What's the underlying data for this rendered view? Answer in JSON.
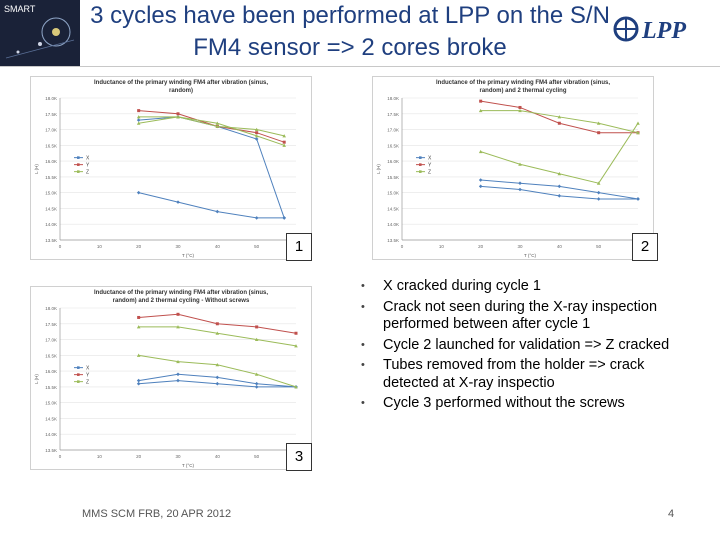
{
  "slide": {
    "title": "3 cycles have been performed at LPP on the S/N FM4 sensor => 2 cores broke",
    "logo_left_text": "SMART",
    "logo_right_text": "LPP",
    "bullets": [
      "X cracked during cycle 1",
      "Crack not seen during the X-ray inspection performed between after cycle 1",
      "Cycle 2 launched for validation => Z cracked",
      "Tubes removed from the holder => crack detected at X-ray inspectio",
      "Cycle 3 performed without the screws"
    ],
    "footer": "MMS SCM FRB, 20 APR 2012",
    "page_number": "4"
  },
  "colors": {
    "title": "#1f3f7f",
    "x_series": "#4f81bd",
    "y_series": "#c0504d",
    "z_series": "#9bbb59"
  },
  "chart_data": [
    {
      "id": "1",
      "type": "line",
      "title": "Inductance of the primary winding FM4 after vibration (sinus, random)",
      "xlabel": "T (°C)",
      "ylabel": "L (H)",
      "x_ticks": [
        "0",
        "10",
        "20",
        "30",
        "40",
        "50",
        "60"
      ],
      "y_ticks": [
        "13.5K",
        "14.0K",
        "14.5K",
        "15.0K",
        "15.5K",
        "16.0K",
        "16.5K",
        "17.0K",
        "17.5K",
        "18.0K"
      ],
      "ylim": [
        13.5,
        18.0
      ],
      "legend": [
        "X",
        "Y",
        "Z"
      ],
      "series": [
        {
          "name": "X",
          "x": [
            20,
            30,
            40,
            50,
            57
          ],
          "y": [
            15.0,
            14.7,
            14.4,
            14.2,
            14.2
          ]
        },
        {
          "name": "X",
          "x": [
            20,
            30,
            40,
            50,
            57
          ],
          "y": [
            17.3,
            17.4,
            17.1,
            16.7,
            14.2
          ]
        },
        {
          "name": "Y",
          "x": [
            20,
            30,
            40,
            50,
            57
          ],
          "y": [
            17.6,
            17.5,
            17.1,
            16.9,
            16.6
          ]
        },
        {
          "name": "Z",
          "x": [
            20,
            30,
            40,
            50,
            57
          ],
          "y": [
            17.4,
            17.4,
            17.2,
            16.8,
            16.5
          ]
        },
        {
          "name": "Z",
          "x": [
            20,
            30,
            40,
            50,
            57
          ],
          "y": [
            17.2,
            17.4,
            17.1,
            17.0,
            16.8
          ]
        }
      ]
    },
    {
      "id": "2",
      "type": "line",
      "title": "Inductance of the primary winding FM4 after vibration (sinus, random) and 2 thermal cycling",
      "xlabel": "T (°C)",
      "ylabel": "L (H)",
      "x_ticks": [
        "0",
        "10",
        "20",
        "30",
        "40",
        "50",
        "60"
      ],
      "y_ticks": [
        "13.5K",
        "14.0K",
        "14.5K",
        "15.0K",
        "15.5K",
        "16.0K",
        "16.5K",
        "17.0K",
        "17.5K",
        "18.0K"
      ],
      "ylim": [
        13.5,
        18.0
      ],
      "legend": [
        "X",
        "Y",
        "Z"
      ],
      "series": [
        {
          "name": "X",
          "x": [
            20,
            30,
            40,
            50,
            60
          ],
          "y": [
            15.4,
            15.3,
            15.2,
            15.0,
            14.8
          ]
        },
        {
          "name": "X",
          "x": [
            20,
            30,
            40,
            50,
            60
          ],
          "y": [
            15.2,
            15.1,
            14.9,
            14.8,
            14.8
          ]
        },
        {
          "name": "Y",
          "x": [
            20,
            30,
            40,
            50,
            60
          ],
          "y": [
            17.9,
            17.7,
            17.2,
            16.9,
            16.9
          ]
        },
        {
          "name": "Z",
          "x": [
            20,
            30,
            40,
            50,
            60
          ],
          "y": [
            17.6,
            17.6,
            17.4,
            17.2,
            16.9
          ]
        },
        {
          "name": "Z",
          "x": [
            20,
            30,
            40,
            50,
            60
          ],
          "y": [
            16.3,
            15.9,
            15.6,
            15.3,
            17.2
          ]
        }
      ]
    },
    {
      "id": "3",
      "type": "line",
      "title": "Inductance of the primary winding FM4 after vibration (sinus, random) and 2 thermal cycling - Without screws",
      "xlabel": "T (°C)",
      "ylabel": "L (H)",
      "x_ticks": [
        "0",
        "10",
        "20",
        "30",
        "40",
        "50",
        "60"
      ],
      "y_ticks": [
        "13.5K",
        "14.0K",
        "14.5K",
        "15.0K",
        "15.5K",
        "16.0K",
        "16.5K",
        "17.0K",
        "17.5K",
        "18.0K"
      ],
      "ylim": [
        13.5,
        18.0
      ],
      "legend": [
        "X",
        "Y",
        "Z"
      ],
      "series": [
        {
          "name": "X",
          "x": [
            20,
            30,
            40,
            50,
            60
          ],
          "y": [
            15.7,
            15.9,
            15.8,
            15.6,
            15.5
          ]
        },
        {
          "name": "X",
          "x": [
            20,
            30,
            40,
            50,
            60
          ],
          "y": [
            15.6,
            15.7,
            15.6,
            15.5,
            15.5
          ]
        },
        {
          "name": "Y",
          "x": [
            20,
            30,
            40,
            50,
            60
          ],
          "y": [
            17.7,
            17.8,
            17.5,
            17.4,
            17.2
          ]
        },
        {
          "name": "Z",
          "x": [
            20,
            30,
            40,
            50,
            60
          ],
          "y": [
            16.5,
            16.3,
            16.2,
            15.9,
            15.5
          ]
        },
        {
          "name": "Z",
          "x": [
            20,
            30,
            40,
            50,
            60
          ],
          "y": [
            17.4,
            17.4,
            17.2,
            17.0,
            16.8
          ]
        }
      ]
    }
  ]
}
